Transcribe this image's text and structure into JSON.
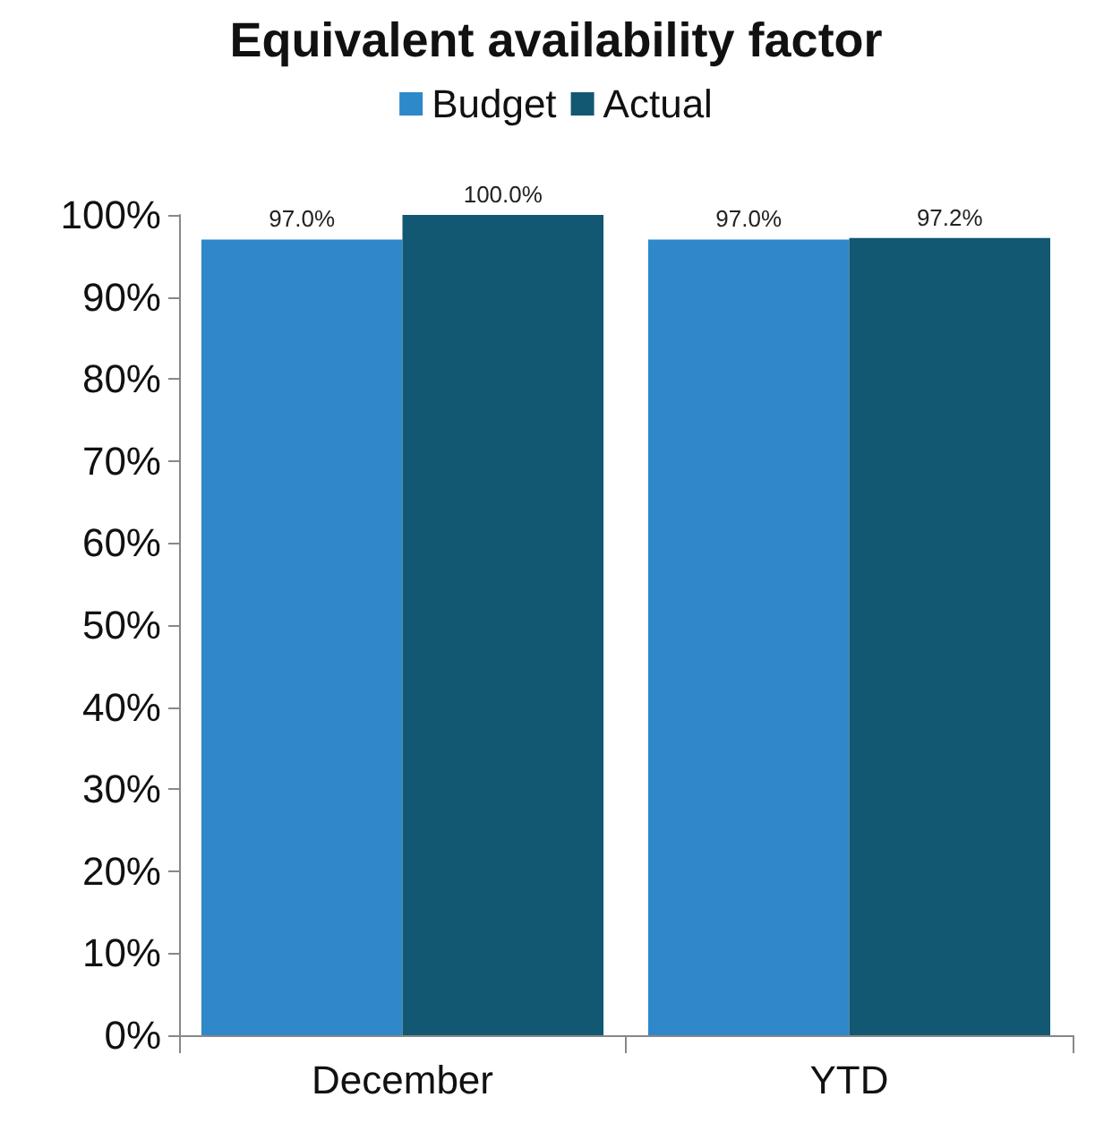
{
  "chart_data": {
    "type": "bar",
    "title": "Equivalent availability factor",
    "categories": [
      "December",
      "YTD"
    ],
    "series": [
      {
        "name": "Budget",
        "color": "#2e88c9",
        "values": [
          97.0,
          97.0
        ],
        "value_labels": [
          "97.0%",
          "97.0%"
        ]
      },
      {
        "name": "Actual",
        "color": "#135873",
        "values": [
          100.0,
          97.2
        ],
        "value_labels": [
          "100.0%",
          "97.2%"
        ]
      }
    ],
    "ylim": [
      0,
      100
    ],
    "yticks": [
      {
        "value": 0,
        "label": "0%"
      },
      {
        "value": 10,
        "label": "10%"
      },
      {
        "value": 20,
        "label": "20%"
      },
      {
        "value": 30,
        "label": "30%"
      },
      {
        "value": 40,
        "label": "40%"
      },
      {
        "value": 50,
        "label": "50%"
      },
      {
        "value": 60,
        "label": "60%"
      },
      {
        "value": 70,
        "label": "70%"
      },
      {
        "value": 80,
        "label": "80%"
      },
      {
        "value": 90,
        "label": "90%"
      },
      {
        "value": 100,
        "label": "100%"
      }
    ],
    "grid": false,
    "legend": "top"
  }
}
